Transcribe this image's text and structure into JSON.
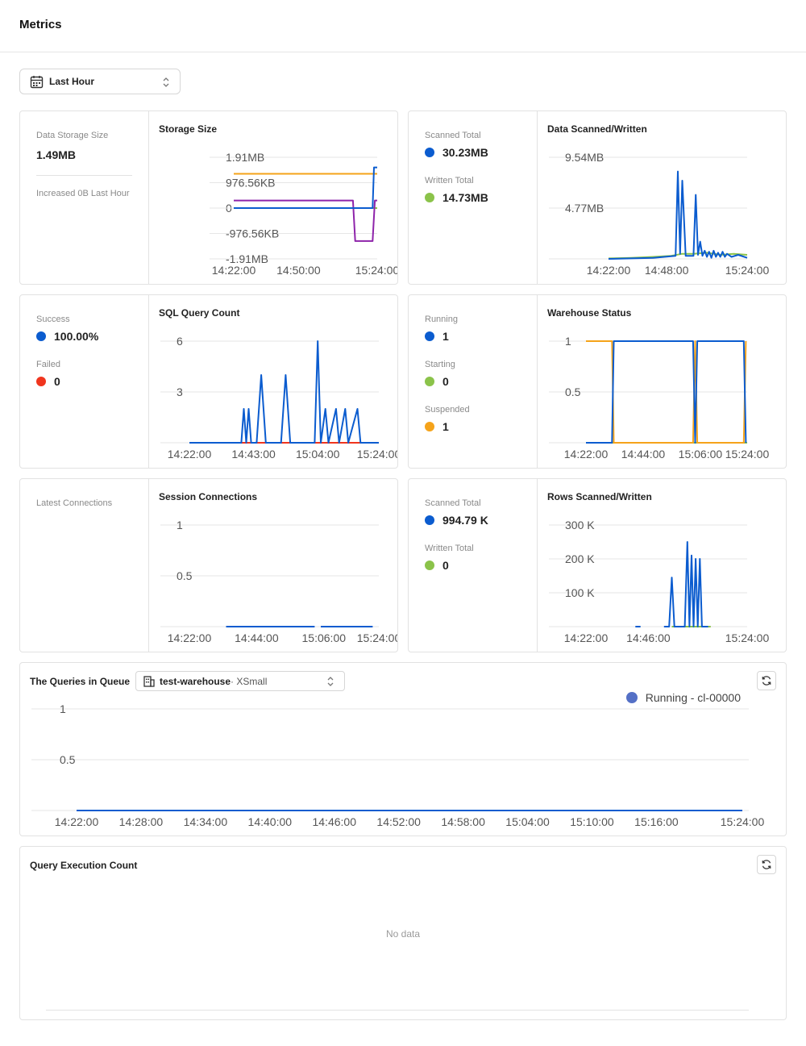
{
  "page": {
    "title": "Metrics"
  },
  "time_range": {
    "selected": "Last Hour"
  },
  "colors": {
    "blue": "#0b5ccf",
    "green": "#8bc34a",
    "orange": "#f5a31a",
    "purple": "#8e24aa",
    "red": "#f0351e",
    "legend_blue": "#5470c6"
  },
  "storage": {
    "size_label": "Data Storage Size",
    "size_value": "1.49MB",
    "increase_label": "Increased 0B Last Hour",
    "chart_title": "Storage Size"
  },
  "scanned_written": {
    "scanned_label": "Scanned Total",
    "scanned_value": "30.23MB",
    "written_label": "Written Total",
    "written_value": "14.73MB",
    "chart_title": "Data Scanned/Written"
  },
  "sql_query": {
    "success_label": "Success",
    "success_value": "100.00%",
    "failed_label": "Failed",
    "failed_value": "0",
    "chart_title": "SQL Query Count"
  },
  "warehouse_status": {
    "running_label": "Running",
    "running_value": "1",
    "starting_label": "Starting",
    "starting_value": "0",
    "suspended_label": "Suspended",
    "suspended_value": "1",
    "chart_title": "Warehouse Status"
  },
  "sessions": {
    "latest_label": "Latest Connections",
    "chart_title": "Session Connections"
  },
  "rows": {
    "scanned_label": "Scanned Total",
    "scanned_value": "994.79 K",
    "written_label": "Written Total",
    "written_value": "0",
    "chart_title": "Rows Scanned/Written"
  },
  "queue": {
    "title": "The Queries in Queue",
    "warehouse_name": "test-warehouse",
    "warehouse_size": " · XSmall",
    "legend": "Running - cl-00000"
  },
  "execution": {
    "title": "Query Execution Count",
    "empty_text": "No data"
  },
  "chart_data": [
    {
      "id": "storage",
      "type": "line",
      "title": "Storage Size",
      "y_ticks": [
        "1.91MB",
        "976.56KB",
        "0",
        "-976.56KB",
        "-1.91MB"
      ],
      "y_tick_values": [
        2,
        1,
        0,
        -1,
        -2
      ],
      "x_ticks": [
        "14:22:00",
        "14:50:00",
        "15:24:00"
      ],
      "x_tick_values": [
        0,
        28,
        62
      ],
      "xlim": [
        0,
        62
      ],
      "ylim": [
        -2,
        2
      ],
      "series": [
        {
          "color": "orange",
          "points": [
            [
              0,
              1.35
            ],
            [
              62,
              1.35
            ]
          ]
        },
        {
          "color": "green",
          "points": [
            [
              0,
              0
            ],
            [
              62,
              0
            ]
          ]
        },
        {
          "color": "purple",
          "points": [
            [
              0,
              0.3
            ],
            [
              51.5,
              0.3
            ],
            [
              52.5,
              -1.3
            ],
            [
              60,
              -1.3
            ],
            [
              61,
              0.3
            ],
            [
              62,
              0.3
            ]
          ]
        },
        {
          "color": "blue",
          "points": [
            [
              0,
              0
            ],
            [
              60,
              0
            ],
            [
              60.6,
              1.6
            ],
            [
              62,
              1.6
            ]
          ]
        }
      ]
    },
    {
      "id": "data_scanned",
      "type": "line",
      "title": "Data Scanned/Written",
      "y_ticks": [
        "9.54MB",
        "4.77MB"
      ],
      "y_tick_values": [
        10,
        5
      ],
      "x_ticks": [
        "14:22:00",
        "14:48:00",
        "15:24:00"
      ],
      "x_tick_values": [
        0,
        26,
        62
      ],
      "xlim": [
        0,
        62
      ],
      "ylim": [
        0,
        10
      ],
      "series": [
        {
          "color": "green",
          "points": [
            [
              0,
              0.05
            ],
            [
              10,
              0.1
            ],
            [
              20,
              0.2
            ],
            [
              28,
              0.3
            ],
            [
              33,
              0.5
            ],
            [
              38,
              0.5
            ],
            [
              44,
              0.6
            ],
            [
              50,
              0.4
            ],
            [
              56,
              0.5
            ],
            [
              62,
              0.4
            ]
          ]
        },
        {
          "color": "blue",
          "points": [
            [
              0,
              0
            ],
            [
              10,
              0.05
            ],
            [
              20,
              0.1
            ],
            [
              25,
              0.2
            ],
            [
              30,
              0.3
            ],
            [
              31,
              8.6
            ],
            [
              32,
              0.5
            ],
            [
              33,
              7.7
            ],
            [
              34.5,
              0.3
            ],
            [
              38,
              0.3
            ],
            [
              39,
              6.3
            ],
            [
              40,
              0.4
            ],
            [
              41,
              1.7
            ],
            [
              42,
              0.3
            ],
            [
              43,
              0.8
            ],
            [
              44,
              0.2
            ],
            [
              45,
              0.7
            ],
            [
              46,
              0.1
            ],
            [
              47,
              0.8
            ],
            [
              48,
              0.2
            ],
            [
              49,
              0.6
            ],
            [
              50,
              0.2
            ],
            [
              51,
              0.7
            ],
            [
              52,
              0.2
            ],
            [
              53,
              0.5
            ],
            [
              55,
              0.2
            ],
            [
              58,
              0.4
            ],
            [
              62,
              0.1
            ]
          ]
        }
      ]
    },
    {
      "id": "sql_query",
      "type": "line",
      "title": "SQL Query Count",
      "y_ticks": [
        "6",
        "3"
      ],
      "y_tick_values": [
        6,
        3
      ],
      "x_ticks": [
        "14:22:00",
        "14:43:00",
        "15:04:00",
        "15:24:00"
      ],
      "x_tick_values": [
        0,
        21,
        42,
        62
      ],
      "xlim": [
        0,
        62
      ],
      "ylim": [
        0,
        6
      ],
      "series": [
        {
          "color": "red",
          "points": [
            [
              0,
              0
            ],
            [
              62,
              0
            ]
          ]
        },
        {
          "color": "blue",
          "points": [
            [
              0,
              0
            ],
            [
              17,
              0
            ],
            [
              17.8,
              2
            ],
            [
              18.6,
              0
            ],
            [
              19.4,
              2
            ],
            [
              20.2,
              0
            ],
            [
              22,
              0
            ],
            [
              23.5,
              4
            ],
            [
              25,
              0
            ],
            [
              30,
              0
            ],
            [
              31.5,
              4
            ],
            [
              33,
              0
            ],
            [
              41,
              0
            ],
            [
              42,
              6
            ],
            [
              43,
              0
            ],
            [
              44.5,
              2
            ],
            [
              45.5,
              0
            ],
            [
              48,
              2
            ],
            [
              49,
              0
            ],
            [
              51,
              2
            ],
            [
              52,
              0
            ],
            [
              55,
              2
            ],
            [
              56,
              0
            ],
            [
              62,
              0
            ]
          ]
        }
      ]
    },
    {
      "id": "warehouse_status",
      "type": "line",
      "title": "Warehouse Status",
      "y_ticks": [
        "1",
        "0.5"
      ],
      "y_tick_values": [
        1,
        0.5
      ],
      "x_ticks": [
        "14:22:00",
        "14:44:00",
        "15:06:00",
        "15:24:00"
      ],
      "x_tick_values": [
        0,
        22,
        44,
        62
      ],
      "xlim": [
        0,
        62
      ],
      "ylim": [
        0,
        1
      ],
      "series": [
        {
          "color": "green",
          "points": [
            [
              0,
              0
            ],
            [
              62,
              0
            ]
          ]
        },
        {
          "color": "orange",
          "points": [
            [
              0,
              1
            ],
            [
              10,
              1
            ],
            [
              10.7,
              0
            ],
            [
              41.2,
              0
            ],
            [
              42,
              1
            ],
            [
              42.8,
              0
            ],
            [
              60.7,
              0
            ],
            [
              61.5,
              1
            ]
          ]
        },
        {
          "color": "blue",
          "points": [
            [
              0,
              0
            ],
            [
              10,
              0
            ],
            [
              10.7,
              1
            ],
            [
              41.2,
              1
            ],
            [
              42,
              0
            ],
            [
              42.8,
              1
            ],
            [
              60.7,
              1
            ],
            [
              61.5,
              0
            ]
          ]
        }
      ]
    },
    {
      "id": "sessions",
      "type": "line",
      "title": "Session Connections",
      "y_ticks": [
        "1",
        "0.5"
      ],
      "y_tick_values": [
        1,
        0.5
      ],
      "x_ticks": [
        "14:22:00",
        "14:44:00",
        "15:06:00",
        "15:24:00"
      ],
      "x_tick_values": [
        0,
        22,
        44,
        62
      ],
      "xlim": [
        0,
        62
      ],
      "ylim": [
        0,
        1
      ],
      "series": [
        {
          "color": "blue",
          "points": [
            [
              12,
              0
            ],
            [
              41,
              0
            ]
          ]
        },
        {
          "color": "blue",
          "points": [
            [
              43,
              0
            ],
            [
              60,
              0
            ]
          ]
        }
      ]
    },
    {
      "id": "rows",
      "type": "line",
      "title": "Rows Scanned/Written",
      "y_ticks": [
        "300 K",
        "200 K",
        "100 K"
      ],
      "y_tick_values": [
        300,
        200,
        100
      ],
      "x_ticks": [
        "14:22:00",
        "14:46:00",
        "15:24:00"
      ],
      "x_tick_values": [
        0,
        24,
        62
      ],
      "xlim": [
        0,
        62
      ],
      "ylim": [
        0,
        300
      ],
      "series": [
        {
          "color": "green",
          "points": [
            [
              33,
              0
            ],
            [
              48,
              0
            ]
          ]
        },
        {
          "color": "blue",
          "points": [
            [
              30,
              0
            ],
            [
              32,
              0
            ],
            [
              33,
              145
            ],
            [
              34,
              0
            ],
            [
              38,
              0
            ],
            [
              39,
              250
            ],
            [
              39.8,
              0
            ],
            [
              40.6,
              210
            ],
            [
              41.4,
              0
            ],
            [
              42.2,
              200
            ],
            [
              43,
              0
            ],
            [
              43.8,
              200
            ],
            [
              44.6,
              0
            ],
            [
              47,
              0
            ]
          ]
        },
        {
          "color": "blue",
          "points": [
            [
              19,
              0
            ],
            [
              21,
              0
            ]
          ]
        }
      ]
    },
    {
      "id": "queue",
      "type": "line",
      "title": "The Queries in Queue",
      "y_ticks": [
        "1",
        "0.5"
      ],
      "y_tick_values": [
        1,
        0.5
      ],
      "x_ticks": [
        "14:22:00",
        "14:28:00",
        "14:34:00",
        "14:40:00",
        "14:46:00",
        "14:52:00",
        "14:58:00",
        "15:04:00",
        "15:10:00",
        "15:16:00",
        "15:24:00"
      ],
      "x_tick_values": [
        0,
        6,
        12,
        18,
        24,
        30,
        36,
        42,
        48,
        54,
        62
      ],
      "xlim": [
        0,
        62
      ],
      "ylim": [
        0,
        1
      ],
      "series": [
        {
          "name": "Running - cl-00000",
          "color": "blue",
          "points": [
            [
              0,
              0
            ],
            [
              62,
              0
            ]
          ]
        }
      ]
    }
  ]
}
